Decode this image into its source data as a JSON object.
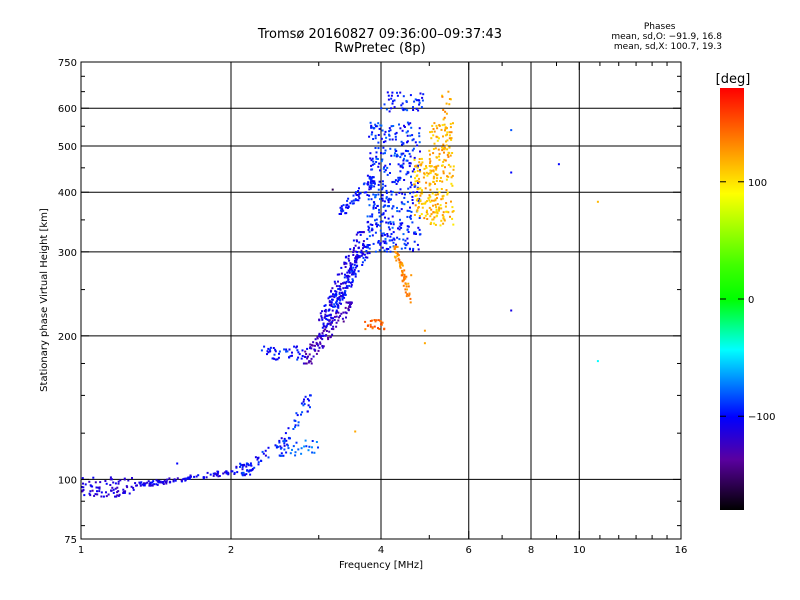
{
  "chart_data": {
    "type": "scatter",
    "title": "Tromsø 20160827 09:36:00–09:37:43",
    "subtitle": "RwPretec (8p)",
    "xlabel": "Frequency [MHz]",
    "ylabel": "Stationary phase Virtual Height [km]",
    "x_scale": "log",
    "y_scale": "log",
    "xlim": [
      1,
      16
    ],
    "ylim": [
      75,
      750
    ],
    "x_ticks": [
      1,
      2,
      4,
      6,
      8,
      10,
      16
    ],
    "x_tick_labels": [
      "1",
      "2",
      "4",
      "6",
      "8",
      "10",
      "16"
    ],
    "x_gridlines": [
      2,
      4,
      6,
      8,
      10
    ],
    "y_ticks": [
      75,
      100,
      200,
      300,
      400,
      500,
      600,
      750
    ],
    "y_tick_labels": [
      "75",
      "100",
      "200",
      "300",
      "400",
      "500",
      "600",
      "750"
    ],
    "y_gridlines": [
      100,
      200,
      300,
      400,
      500,
      600
    ],
    "grid": true,
    "colorbar": {
      "label": "[deg]",
      "range": [
        -180,
        180
      ],
      "ticks": [
        100,
        0,
        -100
      ],
      "tick_labels": [
        "100",
        "0",
        "−100"
      ]
    },
    "phase_stats": {
      "header": "Phases",
      "line_o": "mean, sd,O: −91.9, 16.8",
      "line_x": "mean, sd,X: 100.7, 19.3"
    },
    "clusters": [
      {
        "x_range": [
          1.0,
          1.28
        ],
        "y_range": [
          92,
          101
        ],
        "phase": -115,
        "trend": "flat",
        "count": 75
      },
      {
        "x_range": [
          1.28,
          2.05
        ],
        "y_range": [
          97,
          104
        ],
        "phase": -110,
        "trend": "rising",
        "count": 110
      },
      {
        "x_range": [
          2.05,
          2.2
        ],
        "y_range": [
          102,
          108
        ],
        "phase": -105,
        "trend": "flat",
        "count": 25
      },
      {
        "x_range": [
          2.1,
          2.6
        ],
        "y_range": [
          103,
          122
        ],
        "phase": -100,
        "trend": "rising",
        "count": 45
      },
      {
        "x_range": [
          2.5,
          2.9
        ],
        "y_range": [
          112,
          150
        ],
        "phase": -95,
        "trend": "rising",
        "count": 45
      },
      {
        "x_range": [
          2.6,
          3.0
        ],
        "y_range": [
          112,
          122
        ],
        "phase": -80,
        "trend": "flat",
        "count": 20
      },
      {
        "x_range": [
          2.3,
          2.85
        ],
        "y_range": [
          178,
          190
        ],
        "phase": -100,
        "trend": "flat",
        "count": 45
      },
      {
        "x_range": [
          2.8,
          3.5
        ],
        "y_range": [
          175,
          235
        ],
        "phase": -130,
        "trend": "rising",
        "count": 110
      },
      {
        "x_range": [
          3.0,
          3.7
        ],
        "y_range": [
          200,
          330
        ],
        "phase": -110,
        "trend": "rising",
        "count": 170
      },
      {
        "x_range": [
          3.2,
          3.8
        ],
        "y_range": [
          230,
          310
        ],
        "phase": -100,
        "trend": "rising",
        "count": 110
      },
      {
        "x_range": [
          3.3,
          3.9
        ],
        "y_range": [
          360,
          430
        ],
        "phase": -100,
        "trend": "rising",
        "count": 65
      },
      {
        "x_range": [
          3.75,
          4.8
        ],
        "y_range": [
          300,
          560
        ],
        "phase": -95,
        "trend": "flat",
        "count": 420
      },
      {
        "x_range": [
          4.0,
          4.9
        ],
        "y_range": [
          590,
          650
        ],
        "phase": -95,
        "trend": "flat",
        "count": 45
      },
      {
        "x_range": [
          4.65,
          5.2
        ],
        "y_range": [
          350,
          470
        ],
        "phase": 110,
        "trend": "flat",
        "count": 110
      },
      {
        "x_range": [
          5.0,
          5.6
        ],
        "y_range": [
          340,
          560
        ],
        "phase": 110,
        "trend": "flat",
        "count": 150
      },
      {
        "x_range": [
          4.25,
          4.6
        ],
        "y_range": [
          235,
          310
        ],
        "phase": 125,
        "trend": "falling",
        "count": 60
      },
      {
        "x_range": [
          3.7,
          4.1
        ],
        "y_range": [
          206,
          216
        ],
        "phase": 140,
        "trend": "flat",
        "count": 25
      },
      {
        "x_range": [
          5.3,
          5.55
        ],
        "y_range": [
          460,
          650
        ],
        "phase": 115,
        "trend": "flat",
        "count": 25
      }
    ],
    "isolated_points": [
      {
        "x": 7.3,
        "y": 540,
        "phase": -85
      },
      {
        "x": 7.3,
        "y": 440,
        "phase": -100
      },
      {
        "x": 9.1,
        "y": 458,
        "phase": -100
      },
      {
        "x": 7.3,
        "y": 226,
        "phase": -110
      },
      {
        "x": 10.9,
        "y": 382,
        "phase": 110
      },
      {
        "x": 10.9,
        "y": 177,
        "phase": -40
      },
      {
        "x": 3.55,
        "y": 126,
        "phase": 115
      },
      {
        "x": 4.9,
        "y": 205,
        "phase": 120
      },
      {
        "x": 4.9,
        "y": 193,
        "phase": 115
      },
      {
        "x": 4.6,
        "y": 268,
        "phase": 120
      },
      {
        "x": 3.2,
        "y": 405,
        "phase": -160
      },
      {
        "x": 1.56,
        "y": 108,
        "phase": -100
      }
    ]
  }
}
